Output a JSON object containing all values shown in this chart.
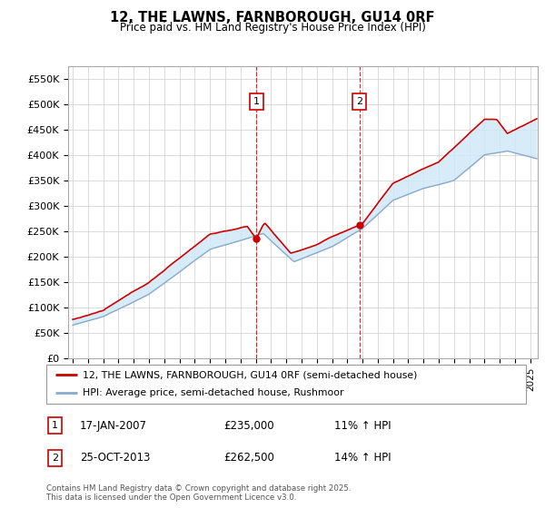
{
  "title": "12, THE LAWNS, FARNBOROUGH, GU14 0RF",
  "subtitle": "Price paid vs. HM Land Registry's House Price Index (HPI)",
  "ylim": [
    0,
    575000
  ],
  "yticks": [
    0,
    50000,
    100000,
    150000,
    200000,
    250000,
    300000,
    350000,
    400000,
    450000,
    500000,
    550000
  ],
  "ytick_labels": [
    "£0",
    "£50K",
    "£100K",
    "£150K",
    "£200K",
    "£250K",
    "£300K",
    "£350K",
    "£400K",
    "£450K",
    "£500K",
    "£550K"
  ],
  "line1_color": "#cc0000",
  "line2_color": "#88aacc",
  "fill_color": "#d0e8f8",
  "vline_color": "#cc0000",
  "t1_year": 2007.04,
  "t2_year": 2013.81,
  "t1_price": 235000,
  "t2_price": 262500,
  "transaction1": {
    "date": "17-JAN-2007",
    "price": 235000,
    "hpi_pct": "11%"
  },
  "transaction2": {
    "date": "25-OCT-2013",
    "price": 262500,
    "hpi_pct": "14%"
  },
  "legend_line1": "12, THE LAWNS, FARNBOROUGH, GU14 0RF (semi-detached house)",
  "legend_line2": "HPI: Average price, semi-detached house, Rushmoor",
  "footer": "Contains HM Land Registry data © Crown copyright and database right 2025.\nThis data is licensed under the Open Government Licence v3.0."
}
